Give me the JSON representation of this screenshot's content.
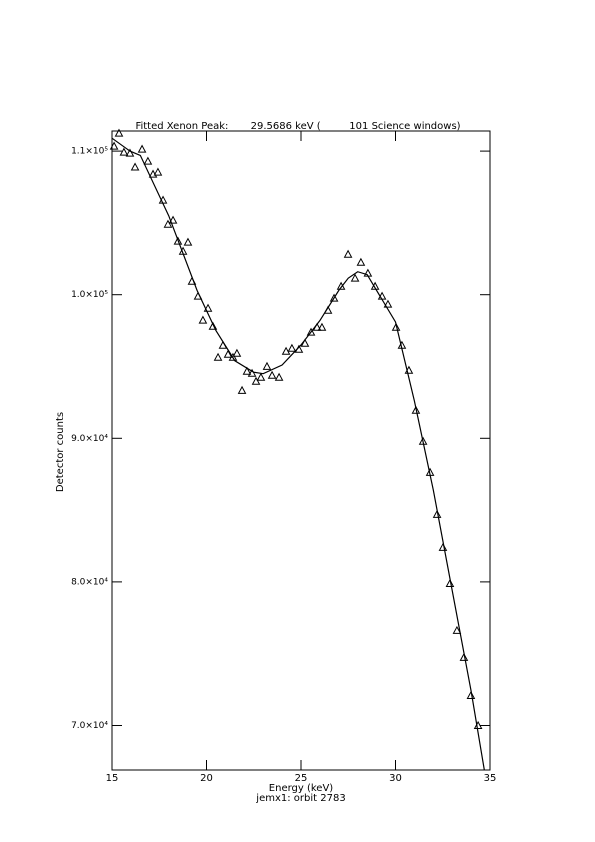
{
  "chart_data": {
    "type": "scatter",
    "title": "Fitted Xenon Peak:       29.5686 keV (         101 Science windows)",
    "x_label": "Energy (keV)",
    "subtitle": "jemx1: orbit 2783",
    "y_label": "Detector counts",
    "xlim": [
      15,
      35
    ],
    "ylim": [
      66900,
      111400
    ],
    "xticks": [
      15,
      20,
      25,
      30,
      35
    ],
    "yticks": [
      {
        "value": 70000,
        "label": "7.0×10⁴"
      },
      {
        "value": 80000,
        "label": "8.0×10⁴"
      },
      {
        "value": 90000,
        "label": "9.0×10⁴"
      },
      {
        "value": 100000,
        "label": "1.0×10⁵"
      },
      {
        "value": 110000,
        "label": "1.1×10⁵"
      }
    ],
    "color": "#000000",
    "points": {
      "x": [
        15.11,
        15.37,
        15.63,
        15.95,
        16.22,
        16.59,
        16.9,
        17.17,
        17.43,
        17.7,
        17.96,
        18.23,
        18.49,
        18.76,
        19.02,
        19.23,
        19.55,
        19.81,
        20.08,
        20.34,
        20.61,
        20.87,
        21.14,
        21.4,
        21.61,
        21.88,
        22.14,
        22.41,
        22.62,
        22.88,
        23.2,
        23.47,
        23.84,
        24.21,
        24.52,
        24.89,
        25.21,
        25.53,
        25.85,
        26.11,
        26.43,
        26.75,
        27.12,
        27.49,
        27.86,
        28.17,
        28.54,
        28.92,
        29.29,
        29.6,
        30.03,
        30.34,
        30.71,
        31.08,
        31.46,
        31.83,
        32.2,
        32.51,
        32.88,
        33.25,
        33.62,
        33.99,
        34.37
      ],
      "y": [
        110350,
        111250,
        109930,
        109860,
        108890,
        110140,
        109300,
        108400,
        108540,
        106590,
        104910,
        105190,
        103730,
        103030,
        103660,
        100940,
        99900,
        98230,
        99060,
        97800,
        95640,
        96480,
        95850,
        95640,
        95920,
        93340,
        94670,
        94530,
        93970,
        94250,
        95010,
        94390,
        94250,
        96060,
        96270,
        96200,
        96620,
        97390,
        97730,
        97730,
        98920,
        99760,
        100590,
        102820,
        101150,
        102260,
        101500,
        100590,
        99900,
        99340,
        97730,
        96480,
        94740,
        91950,
        89790,
        87630,
        84700,
        82400,
        79890,
        76620,
        74740,
        72090,
        70000
      ]
    },
    "fit": {
      "x": [
        15,
        15.95,
        16.5,
        18,
        19.5,
        20.5,
        21.5,
        22.5,
        23,
        24,
        25,
        26,
        27,
        27.5,
        28,
        28.5,
        29,
        30,
        31,
        32,
        33,
        34,
        34.7
      ],
      "y": [
        110900,
        110000,
        109700,
        105500,
        100300,
        97500,
        95400,
        94600,
        94500,
        95100,
        96500,
        98200,
        100300,
        101150,
        101600,
        101400,
        100300,
        98100,
        92600,
        86400,
        79400,
        72400,
        66900
      ]
    }
  }
}
